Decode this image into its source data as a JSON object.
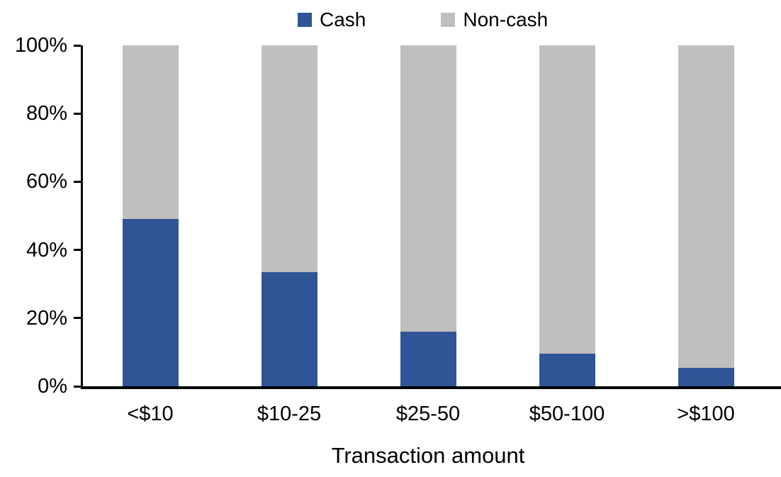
{
  "chart_data": {
    "type": "bar",
    "stacked": true,
    "percent_stacked": true,
    "title": "",
    "xlabel": "Transaction amount",
    "ylabel": "",
    "categories": [
      "<$10",
      "$10-25",
      "$25-50",
      "$50-100",
      ">$100"
    ],
    "series": [
      {
        "name": "Cash",
        "color": "#2F5597",
        "values": [
          49,
          33.5,
          16,
          9.5,
          5.5
        ]
      },
      {
        "name": "Non-cash",
        "color": "#BFBFBF",
        "values": [
          51,
          66.5,
          84,
          90.5,
          94.5
        ]
      }
    ],
    "ylim": [
      0,
      100
    ],
    "yticks": [
      "0%",
      "20%",
      "40%",
      "60%",
      "80%",
      "100%"
    ],
    "grid": false,
    "legend_position": "top-center",
    "axis_color": "#000000",
    "background_color": "#FFFFFF"
  }
}
